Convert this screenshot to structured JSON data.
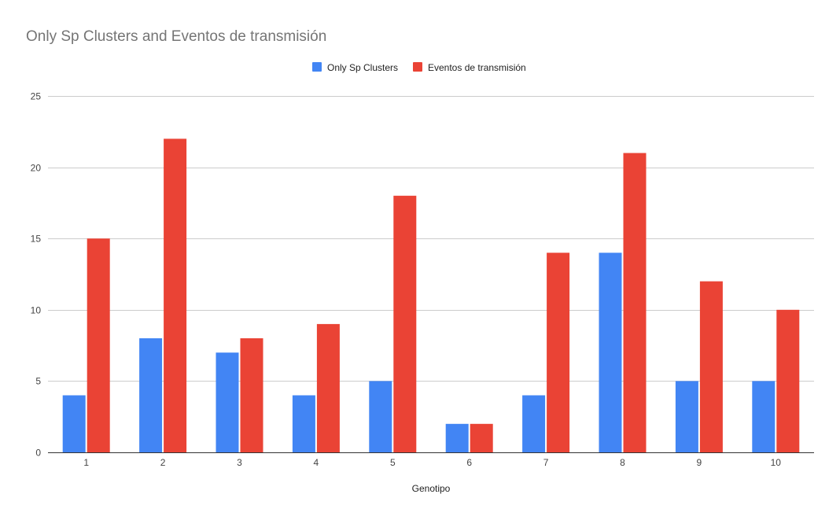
{
  "chart_data": {
    "type": "bar",
    "title": "Only Sp Clusters and Eventos de transmisión",
    "xlabel": "Genotipo",
    "ylabel": "",
    "categories": [
      "1",
      "2",
      "3",
      "4",
      "5",
      "6",
      "7",
      "8",
      "9",
      "10"
    ],
    "series": [
      {
        "name": "Only Sp Clusters",
        "color": "#4285f4",
        "values": [
          4,
          8,
          7,
          4,
          5,
          2,
          4,
          14,
          5,
          5
        ]
      },
      {
        "name": "Eventos de transmisión",
        "color": "#ea4335",
        "values": [
          15,
          22,
          8,
          9,
          18,
          2,
          14,
          21,
          12,
          10
        ]
      }
    ],
    "ylim": [
      0,
      25
    ],
    "yticks": [
      0,
      5,
      10,
      15,
      20,
      25
    ],
    "grid": true,
    "legend_position": "top-center"
  }
}
